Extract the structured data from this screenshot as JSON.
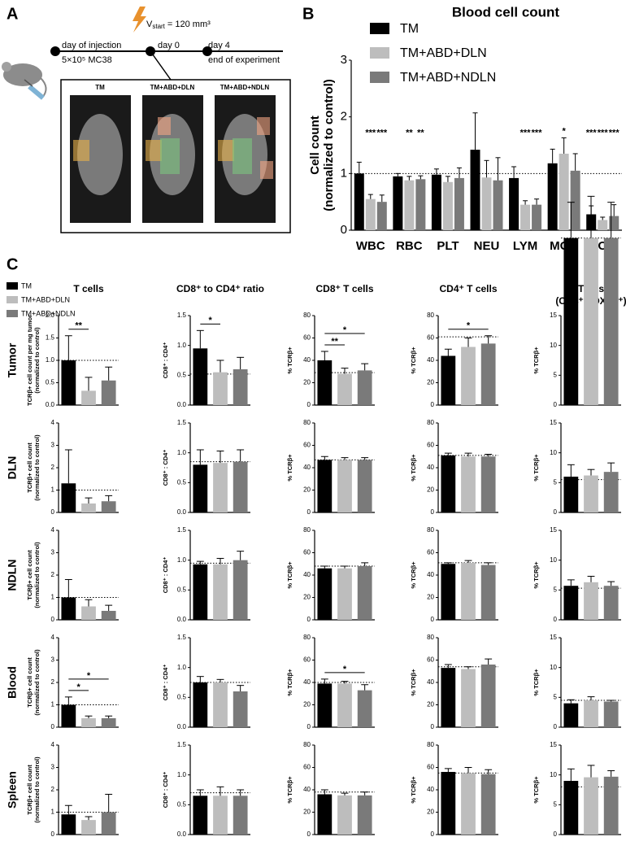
{
  "panel_a": {
    "label": "A",
    "injection": "day of injection",
    "cells": "5×10⁵ MC38",
    "volume": {
      "symbol": "V",
      "subscript": "start",
      "value": "= 120 mm³"
    },
    "day0": "day 0",
    "day4": "day 4",
    "end": "end of experiment",
    "groups": [
      "TM",
      "TM+ABD+DLN",
      "TM+ABD+NDLN"
    ]
  },
  "panel_b_label": "B",
  "panel_c": {
    "label": "C",
    "legend": [
      {
        "name": "TM",
        "color": "#000000"
      },
      {
        "name": "TM+ABD+DLN",
        "color": "#bdbdbd"
      },
      {
        "name": "TM+ABD+NDLN",
        "color": "#7a7a7a"
      }
    ],
    "column_titles": [
      [
        "T cells"
      ],
      [
        "CD8⁺ to CD4⁺ ratio"
      ],
      [
        "CD8⁺ T cells"
      ],
      [
        "CD4⁺ T cells"
      ],
      [
        "Tregs",
        "(CD4⁺ FOXP3⁺)"
      ]
    ],
    "row_labels": [
      "Tumor",
      "DLN",
      "NDLN",
      "Blood",
      "Spleen"
    ]
  },
  "chart_data": [
    {
      "type": "bar",
      "title": "Blood cell count",
      "ylabel": [
        "Cell count",
        "(normalized to control)"
      ],
      "categories": [
        "WBC",
        "RBC",
        "PLT",
        "NEU",
        "LYM",
        "MON",
        "EOS"
      ],
      "ylim": [
        0,
        3
      ],
      "yticks": [
        0,
        1,
        2,
        3
      ],
      "reference": 1,
      "series": [
        {
          "name": "TM",
          "color": "#000000",
          "values": [
            1.0,
            0.95,
            0.98,
            1.42,
            0.92,
            1.18,
            0.28
          ],
          "errors": [
            0.2,
            0.05,
            0.1,
            0.65,
            0.2,
            0.25,
            0.15
          ],
          "significance": [
            null,
            null,
            null,
            null,
            null,
            null,
            "***"
          ]
        },
        {
          "name": "TM+ABD+DLN",
          "color": "#bdbdbd",
          "values": [
            0.55,
            0.88,
            0.85,
            0.93,
            0.45,
            1.35,
            0.18
          ],
          "errors": [
            0.08,
            0.07,
            0.1,
            0.3,
            0.07,
            0.28,
            0.05
          ],
          "significance": [
            "***",
            "**",
            null,
            null,
            "***",
            "*",
            "***"
          ]
        },
        {
          "name": "TM+ABD+NDLN",
          "color": "#7a7a7a",
          "values": [
            0.5,
            0.9,
            0.92,
            0.88,
            0.45,
            1.05,
            0.25
          ],
          "errors": [
            0.12,
            0.06,
            0.18,
            0.4,
            0.1,
            0.3,
            0.2
          ],
          "significance": [
            "***",
            "**",
            null,
            null,
            "***",
            null,
            "***"
          ]
        }
      ]
    },
    {
      "type": "bar",
      "ylabel": [
        "TCRβ+ cell count per mg tumor",
        "(normalized to control)"
      ],
      "ylim": [
        0,
        2
      ],
      "yticks": [
        {
          "value": 0,
          "label": "0.0"
        },
        0.5,
        {
          "value": 1,
          "label": "1.0"
        },
        1.5,
        {
          "value": 2,
          "label": "2.0"
        }
      ],
      "reference": 1,
      "values": [
        1.0,
        0.32,
        0.55
      ],
      "errors": [
        0.55,
        0.3,
        0.3
      ],
      "brackets": [
        {
          "from": 0,
          "to": 1,
          "label": "**"
        }
      ]
    },
    {
      "type": "bar",
      "ylabel": [
        "CD8⁺ : CD4⁺"
      ],
      "ylim": [
        0,
        1.5
      ],
      "yticks": [
        {
          "value": 0,
          "label": "0.0"
        },
        0.5,
        {
          "value": 1,
          "label": "1.0"
        },
        1.5
      ],
      "reference": 0.52,
      "values": [
        0.95,
        0.55,
        0.6
      ],
      "errors": [
        0.3,
        0.2,
        0.2
      ],
      "brackets": [
        {
          "from": 0,
          "to": 1,
          "label": "*"
        }
      ]
    },
    {
      "type": "bar",
      "ylabel": [
        "% TCRβ+"
      ],
      "ylim": [
        0,
        80
      ],
      "yticks": [
        0,
        20,
        40,
        60,
        80
      ],
      "reference": 29,
      "values": [
        40,
        28,
        31
      ],
      "errors": [
        8,
        5,
        6
      ],
      "brackets": [
        {
          "from": 0,
          "to": 1,
          "label": "**"
        },
        {
          "from": 0,
          "to": 2,
          "label": "*"
        }
      ]
    },
    {
      "type": "bar",
      "ylabel": [
        "% TCRβ+"
      ],
      "ylim": [
        0,
        80
      ],
      "yticks": [
        0,
        20,
        40,
        60,
        80
      ],
      "reference": 61,
      "values": [
        44,
        52,
        55
      ],
      "errors": [
        6,
        8,
        7
      ],
      "brackets": [
        {
          "from": 0,
          "to": 2,
          "label": "*"
        }
      ]
    },
    {
      "type": "bar",
      "ylabel": [
        "% TCRβ+"
      ],
      "ylim": [
        0,
        15
      ],
      "yticks": [
        0,
        5,
        10,
        15
      ],
      "reference": 28,
      "values": [
        28,
        28,
        28
      ],
      "errors": [
        6,
        7,
        6
      ]
    },
    {
      "type": "bar",
      "ylabel": [
        "TCRβ+ cell count",
        "(normalized to control)"
      ],
      "ylim": [
        0,
        4
      ],
      "yticks": [
        0,
        1,
        2,
        3,
        4
      ],
      "reference": 1,
      "values": [
        1.3,
        0.4,
        0.5
      ],
      "errors": [
        1.5,
        0.25,
        0.25
      ]
    },
    {
      "type": "bar",
      "ylabel": [
        "CD8⁺ : CD4⁺"
      ],
      "ylim": [
        0,
        1.5
      ],
      "yticks": [
        {
          "value": 0,
          "label": "0.0"
        },
        0.5,
        {
          "value": 1,
          "label": "1.0"
        },
        1.5
      ],
      "reference": 0.85,
      "values": [
        0.8,
        0.83,
        0.85
      ],
      "errors": [
        0.25,
        0.2,
        0.2
      ]
    },
    {
      "type": "bar",
      "ylabel": [
        "% TCRβ+"
      ],
      "ylim": [
        0,
        80
      ],
      "yticks": [
        0,
        20,
        40,
        60,
        80
      ],
      "reference": 47,
      "values": [
        47,
        47,
        47
      ],
      "errors": [
        3,
        2,
        2
      ]
    },
    {
      "type": "bar",
      "ylabel": [
        "% TCRβ+"
      ],
      "ylim": [
        0,
        80
      ],
      "yticks": [
        0,
        20,
        40,
        60,
        80
      ],
      "reference": 51,
      "values": [
        51,
        50,
        50
      ],
      "errors": [
        2,
        3,
        2
      ]
    },
    {
      "type": "bar",
      "ylabel": [
        "% TCRβ+"
      ],
      "ylim": [
        0,
        15
      ],
      "yticks": [
        0,
        5,
        10,
        15
      ],
      "reference": 5.5,
      "values": [
        6,
        6.2,
        6.8
      ],
      "errors": [
        2,
        1,
        1.5
      ]
    },
    {
      "type": "bar",
      "ylabel": [
        "TCRβ+ cell count",
        "(normalized to control)"
      ],
      "ylim": [
        0,
        4
      ],
      "yticks": [
        0,
        1,
        2,
        3,
        4
      ],
      "reference": 1,
      "values": [
        1.0,
        0.6,
        0.4
      ],
      "errors": [
        0.8,
        0.3,
        0.25
      ]
    },
    {
      "type": "bar",
      "ylabel": [
        "CD8⁺ : CD4⁺"
      ],
      "ylim": [
        0,
        1.5
      ],
      "yticks": [
        {
          "value": 0,
          "label": "0.0"
        },
        0.5,
        {
          "value": 1,
          "label": "1.0"
        },
        1.5
      ],
      "reference": 0.95,
      "values": [
        0.93,
        0.93,
        1.0
      ],
      "errors": [
        0.05,
        0.1,
        0.15
      ]
    },
    {
      "type": "bar",
      "ylabel": [
        "% TCRβ+"
      ],
      "ylim": [
        0,
        80
      ],
      "yticks": [
        0,
        20,
        40,
        60,
        80
      ],
      "reference": 48,
      "values": [
        46,
        46,
        48
      ],
      "errors": [
        2,
        2,
        3
      ]
    },
    {
      "type": "bar",
      "ylabel": [
        "% TCRβ+"
      ],
      "ylim": [
        0,
        80
      ],
      "yticks": [
        0,
        20,
        40,
        60,
        80
      ],
      "reference": 51,
      "values": [
        50,
        51,
        49
      ],
      "errors": [
        1,
        2,
        2
      ]
    },
    {
      "type": "bar",
      "ylabel": [
        "% TCRβ+"
      ],
      "ylim": [
        0,
        15
      ],
      "yticks": [
        0,
        5,
        10,
        15
      ],
      "reference": 5.3,
      "values": [
        5.7,
        6.3,
        5.7
      ],
      "errors": [
        1,
        1,
        0.7
      ]
    },
    {
      "type": "bar",
      "ylabel": [
        "TCRβ+ cell count",
        "(normalized to control)"
      ],
      "ylim": [
        0,
        4
      ],
      "yticks": [
        0,
        1,
        2,
        3,
        4
      ],
      "reference": 1,
      "values": [
        1.0,
        0.4,
        0.4
      ],
      "errors": [
        0.35,
        0.1,
        0.1
      ],
      "brackets": [
        {
          "from": 0,
          "to": 1,
          "label": "*"
        },
        {
          "from": 0,
          "to": 2,
          "label": "*"
        }
      ]
    },
    {
      "type": "bar",
      "ylabel": [
        "CD8⁺ : CD4⁺"
      ],
      "ylim": [
        0,
        1.5
      ],
      "yticks": [
        {
          "value": 0,
          "label": "0.0"
        },
        0.5,
        {
          "value": 1,
          "label": "1.0"
        },
        1.5
      ],
      "reference": 0.75,
      "values": [
        0.75,
        0.75,
        0.6
      ],
      "errors": [
        0.1,
        0.05,
        0.1
      ]
    },
    {
      "type": "bar",
      "ylabel": [
        "% TCRβ+"
      ],
      "ylim": [
        0,
        80
      ],
      "yticks": [
        0,
        20,
        40,
        60,
        80
      ],
      "reference": 40,
      "values": [
        39,
        39,
        33
      ],
      "errors": [
        4,
        2,
        5
      ],
      "brackets": [
        {
          "from": 0,
          "to": 2,
          "label": "*"
        }
      ]
    },
    {
      "type": "bar",
      "ylabel": [
        "% TCRβ+"
      ],
      "ylim": [
        0,
        80
      ],
      "yticks": [
        0,
        20,
        40,
        60,
        80
      ],
      "reference": 54,
      "values": [
        53,
        52,
        56
      ],
      "errors": [
        3,
        2,
        5
      ]
    },
    {
      "type": "bar",
      "ylabel": [
        "% TCRβ+"
      ],
      "ylim": [
        0,
        15
      ],
      "yticks": [
        0,
        5,
        10,
        15
      ],
      "reference": 4.5,
      "values": [
        4,
        4.5,
        4.3
      ],
      "errors": [
        0.6,
        0.6,
        0.2
      ]
    },
    {
      "type": "bar",
      "ylabel": [
        "TCRβ+ cell count",
        "(normalized to control)"
      ],
      "ylim": [
        0,
        4
      ],
      "yticks": [
        0,
        1,
        2,
        3,
        4
      ],
      "reference": 1,
      "values": [
        0.9,
        0.65,
        1.0
      ],
      "errors": [
        0.4,
        0.15,
        0.8
      ]
    },
    {
      "type": "bar",
      "ylabel": [
        "CD8⁺ : CD4⁺"
      ],
      "ylim": [
        0,
        1.5
      ],
      "yticks": [
        {
          "value": 0,
          "label": "0.0"
        },
        0.5,
        {
          "value": 1,
          "label": "1.0"
        },
        1.5
      ],
      "reference": 0.7,
      "values": [
        0.65,
        0.65,
        0.65
      ],
      "errors": [
        0.1,
        0.15,
        0.1
      ]
    },
    {
      "type": "bar",
      "ylabel": [
        "% TCRβ+"
      ],
      "ylim": [
        0,
        80
      ],
      "yticks": [
        0,
        20,
        40,
        60,
        80
      ],
      "reference": 38,
      "values": [
        36,
        35,
        35
      ],
      "errors": [
        4,
        2,
        3
      ]
    },
    {
      "type": "bar",
      "ylabel": [
        "% TCRβ+"
      ],
      "ylim": [
        0,
        80
      ],
      "yticks": [
        0,
        20,
        40,
        60,
        80
      ],
      "reference": 55,
      "values": [
        56,
        55,
        54
      ],
      "errors": [
        3,
        5,
        4
      ]
    },
    {
      "type": "bar",
      "ylabel": [
        "% TCRβ+"
      ],
      "ylim": [
        0,
        15
      ],
      "yticks": [
        0,
        5,
        10,
        15
      ],
      "reference": 8,
      "values": [
        9,
        9.6,
        9.7
      ],
      "errors": [
        2,
        2,
        1
      ]
    }
  ]
}
